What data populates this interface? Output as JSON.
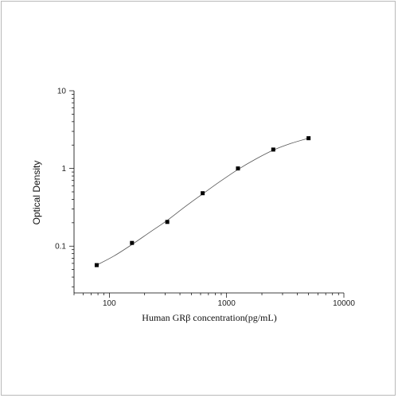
{
  "chart_data": {
    "type": "scatter",
    "xlabel": "Human GRβ concentration(pg/mL)",
    "ylabel": "Optical Density",
    "xscale": "log",
    "yscale": "log",
    "xlim": [
      50,
      10000
    ],
    "ylim": [
      0.025,
      10
    ],
    "x_ticks": [
      100,
      1000,
      10000
    ],
    "x_tick_labels": [
      "100",
      "1000",
      "10000"
    ],
    "y_ticks": [
      0.1,
      1,
      10
    ],
    "y_tick_labels": [
      "0.1",
      "1",
      "10"
    ],
    "grid": false,
    "series": [
      {
        "marker": "square",
        "color": "#000000",
        "x": [
          78,
          156,
          312,
          625,
          1250,
          2500,
          5000
        ],
        "y": [
          0.057,
          0.11,
          0.205,
          0.48,
          1.0,
          1.75,
          2.45
        ]
      }
    ],
    "fit_curve": {
      "style": "smooth",
      "color": "#555555",
      "x": [
        78,
        110,
        156,
        220,
        312,
        440,
        625,
        880,
        1250,
        1770,
        2500,
        3540,
        5000
      ],
      "y": [
        0.057,
        0.075,
        0.105,
        0.15,
        0.215,
        0.32,
        0.47,
        0.68,
        0.97,
        1.32,
        1.72,
        2.1,
        2.45
      ]
    }
  }
}
